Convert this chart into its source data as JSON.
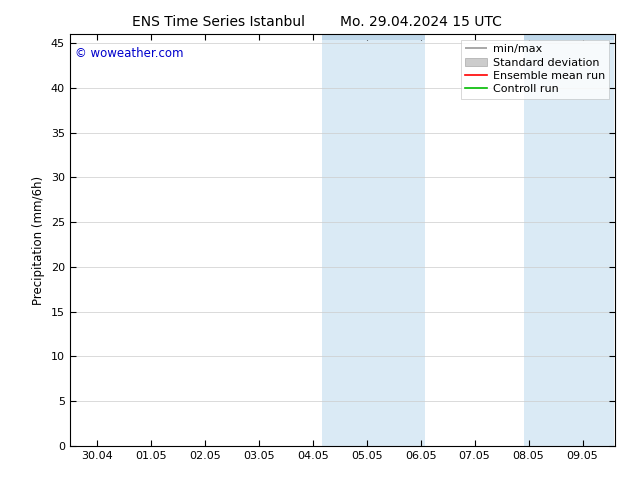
{
  "title_left": "ENS Time Series Istanbul",
  "title_right": "Mo. 29.04.2024 15 UTC",
  "ylabel": "Precipitation (mm/6h)",
  "watermark": "© woweather.com",
  "watermark_color": "#0000cc",
  "background_color": "#ffffff",
  "plot_bg_color": "#ffffff",
  "shaded_regions": [
    {
      "xmin": 4.17,
      "xmax": 6.08,
      "color": "#daeaf5"
    },
    {
      "xmin": 7.92,
      "xmax": 9.58,
      "color": "#daeaf5"
    }
  ],
  "ylim": [
    0,
    46
  ],
  "yticks": [
    0,
    5,
    10,
    15,
    20,
    25,
    30,
    35,
    40,
    45
  ],
  "xtick_labels": [
    "30.04",
    "01.05",
    "02.05",
    "03.05",
    "04.05",
    "05.05",
    "06.05",
    "07.05",
    "08.05",
    "09.05"
  ],
  "xtick_positions": [
    0,
    1,
    2,
    3,
    4,
    5,
    6,
    7,
    8,
    9
  ],
  "xlim": [
    -0.5,
    9.6
  ],
  "legend_labels": [
    "min/max",
    "Standard deviation",
    "Ensemble mean run",
    "Controll run"
  ],
  "legend_colors": [
    "#999999",
    "#cccccc",
    "#ff0000",
    "#00bb00"
  ],
  "font_size": 8.5,
  "title_font_size": 10,
  "tick_font_size": 8,
  "shaded_top_color": "#c0d8ea"
}
